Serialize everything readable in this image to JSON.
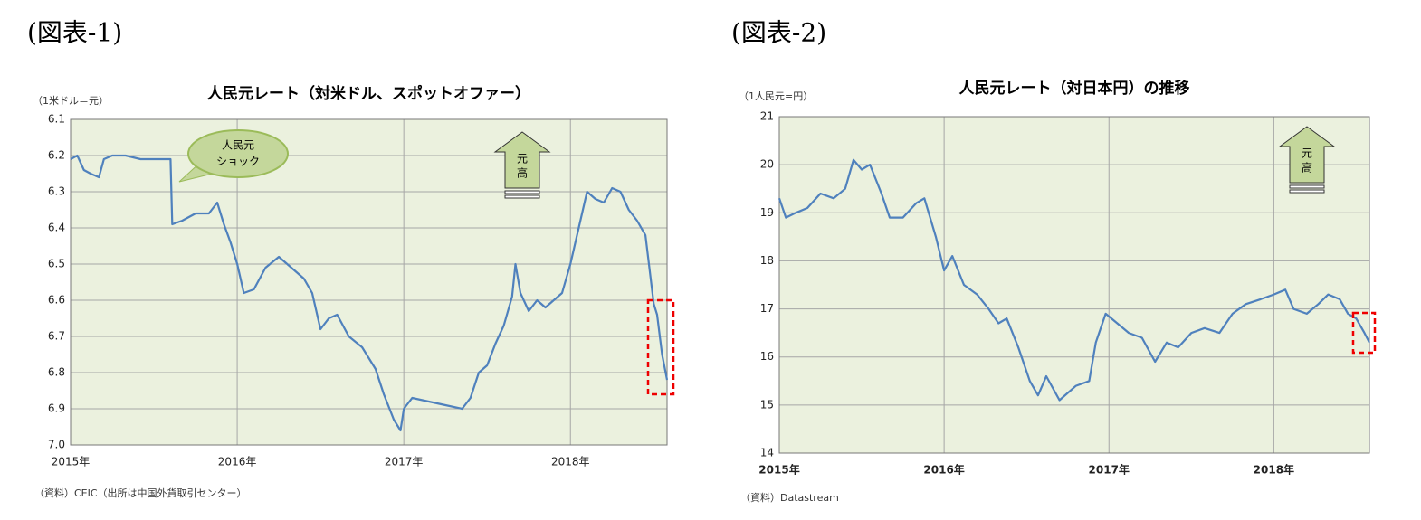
{
  "chart_data": [
    {
      "type": "line",
      "figure_label": "(図表-1)",
      "title": "人民元レート（対米ドル、スポットオファー）",
      "unit_label": "（1米ドル＝元）",
      "source": "（資料）CEIC（出所は中国外貨取引センター）",
      "callout": [
        "人民元",
        "ショック"
      ],
      "arrow_label": [
        "元",
        "高"
      ],
      "xlim": [
        2015,
        2018.58
      ],
      "xticks": [
        {
          "value": 2015,
          "label": "2015年"
        },
        {
          "value": 2016,
          "label": "2016年"
        },
        {
          "value": 2017,
          "label": "2017年"
        },
        {
          "value": 2018,
          "label": "2018年"
        }
      ],
      "ylim": [
        6.1,
        7.0
      ],
      "y_inverted": true,
      "yticks": [
        6.1,
        6.2,
        6.3,
        6.4,
        6.5,
        6.6,
        6.7,
        6.8,
        6.9,
        {
          "value": 7,
          "label": "7.0"
        }
      ],
      "grid": true,
      "x": [
        2015.0,
        2015.04,
        2015.08,
        2015.12,
        2015.17,
        2015.2,
        2015.25,
        2015.33,
        2015.42,
        2015.5,
        2015.6,
        2015.61,
        2015.67,
        2015.75,
        2015.83,
        2015.88,
        2015.92,
        2015.96,
        2016.0,
        2016.04,
        2016.1,
        2016.17,
        2016.25,
        2016.3,
        2016.4,
        2016.45,
        2016.5,
        2016.55,
        2016.6,
        2016.67,
        2016.75,
        2016.83,
        2016.88,
        2016.94,
        2016.98,
        2017.0,
        2017.05,
        2017.15,
        2017.25,
        2017.35,
        2017.4,
        2017.45,
        2017.5,
        2017.55,
        2017.6,
        2017.65,
        2017.67,
        2017.7,
        2017.75,
        2017.8,
        2017.85,
        2017.9,
        2017.95,
        2018.0,
        2018.05,
        2018.1,
        2018.15,
        2018.2,
        2018.25,
        2018.3,
        2018.35,
        2018.4,
        2018.45,
        2018.5,
        2018.52,
        2018.55,
        2018.58
      ],
      "series": [
        {
          "color": "#4f81bd",
          "values": [
            6.21,
            6.2,
            6.24,
            6.25,
            6.26,
            6.21,
            6.2,
            6.2,
            6.21,
            6.21,
            6.21,
            6.39,
            6.38,
            6.36,
            6.36,
            6.33,
            6.39,
            6.44,
            6.5,
            6.58,
            6.57,
            6.51,
            6.48,
            6.5,
            6.54,
            6.58,
            6.68,
            6.65,
            6.64,
            6.7,
            6.73,
            6.79,
            6.86,
            6.93,
            6.96,
            6.9,
            6.87,
            6.88,
            6.89,
            6.9,
            6.87,
            6.8,
            6.78,
            6.72,
            6.67,
            6.59,
            6.5,
            6.58,
            6.63,
            6.6,
            6.62,
            6.6,
            6.58,
            6.5,
            6.4,
            6.3,
            6.32,
            6.33,
            6.29,
            6.3,
            6.35,
            6.38,
            6.42,
            6.61,
            6.64,
            6.75,
            6.82
          ]
        }
      ]
    },
    {
      "type": "line",
      "figure_label": "(図表-2)",
      "title": "人民元レート（対日本円）の推移",
      "unit_label": "（1人民元=円）",
      "source": "（資料）Datastream",
      "arrow_label": [
        "元",
        "高"
      ],
      "xlim": [
        2015,
        2018.58
      ],
      "xticks": [
        {
          "value": 2015,
          "label": "2015年"
        },
        {
          "value": 2016,
          "label": "2016年"
        },
        {
          "value": 2017,
          "label": "2017年"
        },
        {
          "value": 2018,
          "label": "2018年"
        }
      ],
      "ylim": [
        14,
        21
      ],
      "yticks": [
        14,
        15,
        16,
        17,
        18,
        19,
        20,
        21
      ],
      "grid": true,
      "x": [
        2015.0,
        2015.04,
        2015.1,
        2015.17,
        2015.25,
        2015.33,
        2015.4,
        2015.45,
        2015.5,
        2015.55,
        2015.62,
        2015.67,
        2015.75,
        2015.83,
        2015.88,
        2015.95,
        2016.0,
        2016.05,
        2016.12,
        2016.2,
        2016.27,
        2016.33,
        2016.38,
        2016.45,
        2016.52,
        2016.57,
        2016.62,
        2016.7,
        2016.8,
        2016.88,
        2016.92,
        2016.98,
        2017.05,
        2017.12,
        2017.2,
        2017.28,
        2017.35,
        2017.42,
        2017.5,
        2017.58,
        2017.67,
        2017.75,
        2017.83,
        2017.92,
        2018.0,
        2018.07,
        2018.12,
        2018.2,
        2018.27,
        2018.33,
        2018.4,
        2018.45,
        2018.5,
        2018.55,
        2018.58
      ],
      "series": [
        {
          "color": "#4f81bd",
          "values": [
            19.3,
            18.9,
            19.0,
            19.1,
            19.4,
            19.3,
            19.5,
            20.1,
            19.9,
            20.0,
            19.4,
            18.9,
            18.9,
            19.2,
            19.3,
            18.5,
            17.8,
            18.1,
            17.5,
            17.3,
            17.0,
            16.7,
            16.8,
            16.2,
            15.5,
            15.2,
            15.6,
            15.1,
            15.4,
            15.5,
            16.3,
            16.9,
            16.7,
            16.5,
            16.4,
            15.9,
            16.3,
            16.2,
            16.5,
            16.6,
            16.5,
            16.9,
            17.1,
            17.2,
            17.3,
            17.4,
            17.0,
            16.9,
            17.1,
            17.3,
            17.2,
            16.9,
            16.8,
            16.5,
            16.3
          ]
        }
      ]
    }
  ]
}
